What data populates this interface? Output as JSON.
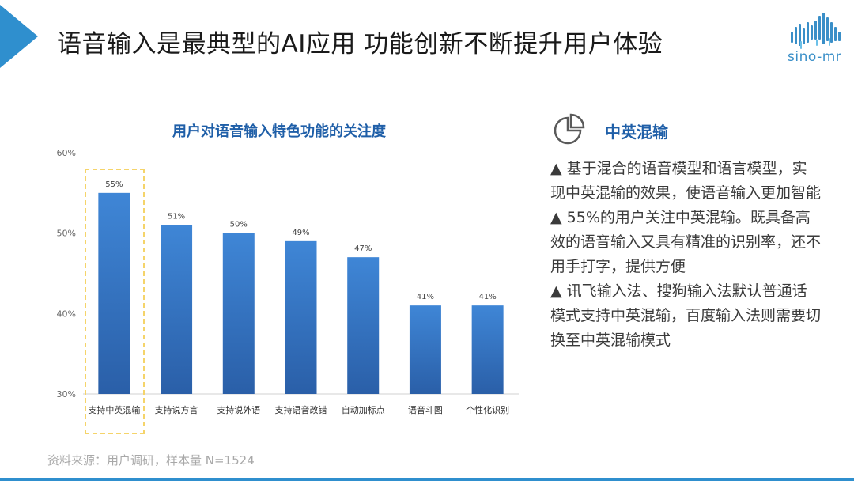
{
  "slide": {
    "title": "语音输入是最典型的AI应用   功能创新不断提升用户体验",
    "logo_text": "sino-mr",
    "accent_color": "#2f8fce"
  },
  "chart_data": {
    "type": "bar",
    "title": "用户对语音输入特色功能的关注度",
    "categories": [
      "支持中英混输",
      "支持说方言",
      "支持说外语",
      "支持语音改错",
      "自动加标点",
      "语音斗图",
      "个性化识别"
    ],
    "values": [
      55,
      51,
      50,
      49,
      47,
      41,
      41
    ],
    "value_labels": [
      "55%",
      "51%",
      "50%",
      "49%",
      "47%",
      "41%",
      "41%"
    ],
    "yticks": [
      "30%",
      "40%",
      "50%",
      "60%"
    ],
    "ylim": [
      30,
      60
    ],
    "xlabel": "",
    "ylabel": "",
    "grid": false,
    "bar_color_top": "#3f86d6",
    "bar_color_bottom": "#2a5fa8",
    "highlighted_category": "支持中英混输"
  },
  "panel": {
    "icon": "pie-chart-icon",
    "heading": "中英混输",
    "points": [
      "▲  基于混合的语音模型和语言模型，实现中英混输的效果，使语音输入更加智能",
      "▲  55%的用户关注中英混输。既具备高效的语音输入又具有精准的识别率，还不用手打字，提供方便",
      "▲  讯飞输入法、搜狗输入法默认普通话模式支持中英混输，百度输入法则需要切换至中英混输模式"
    ]
  },
  "source": "资料来源：用户调研，样本量 N=1524"
}
